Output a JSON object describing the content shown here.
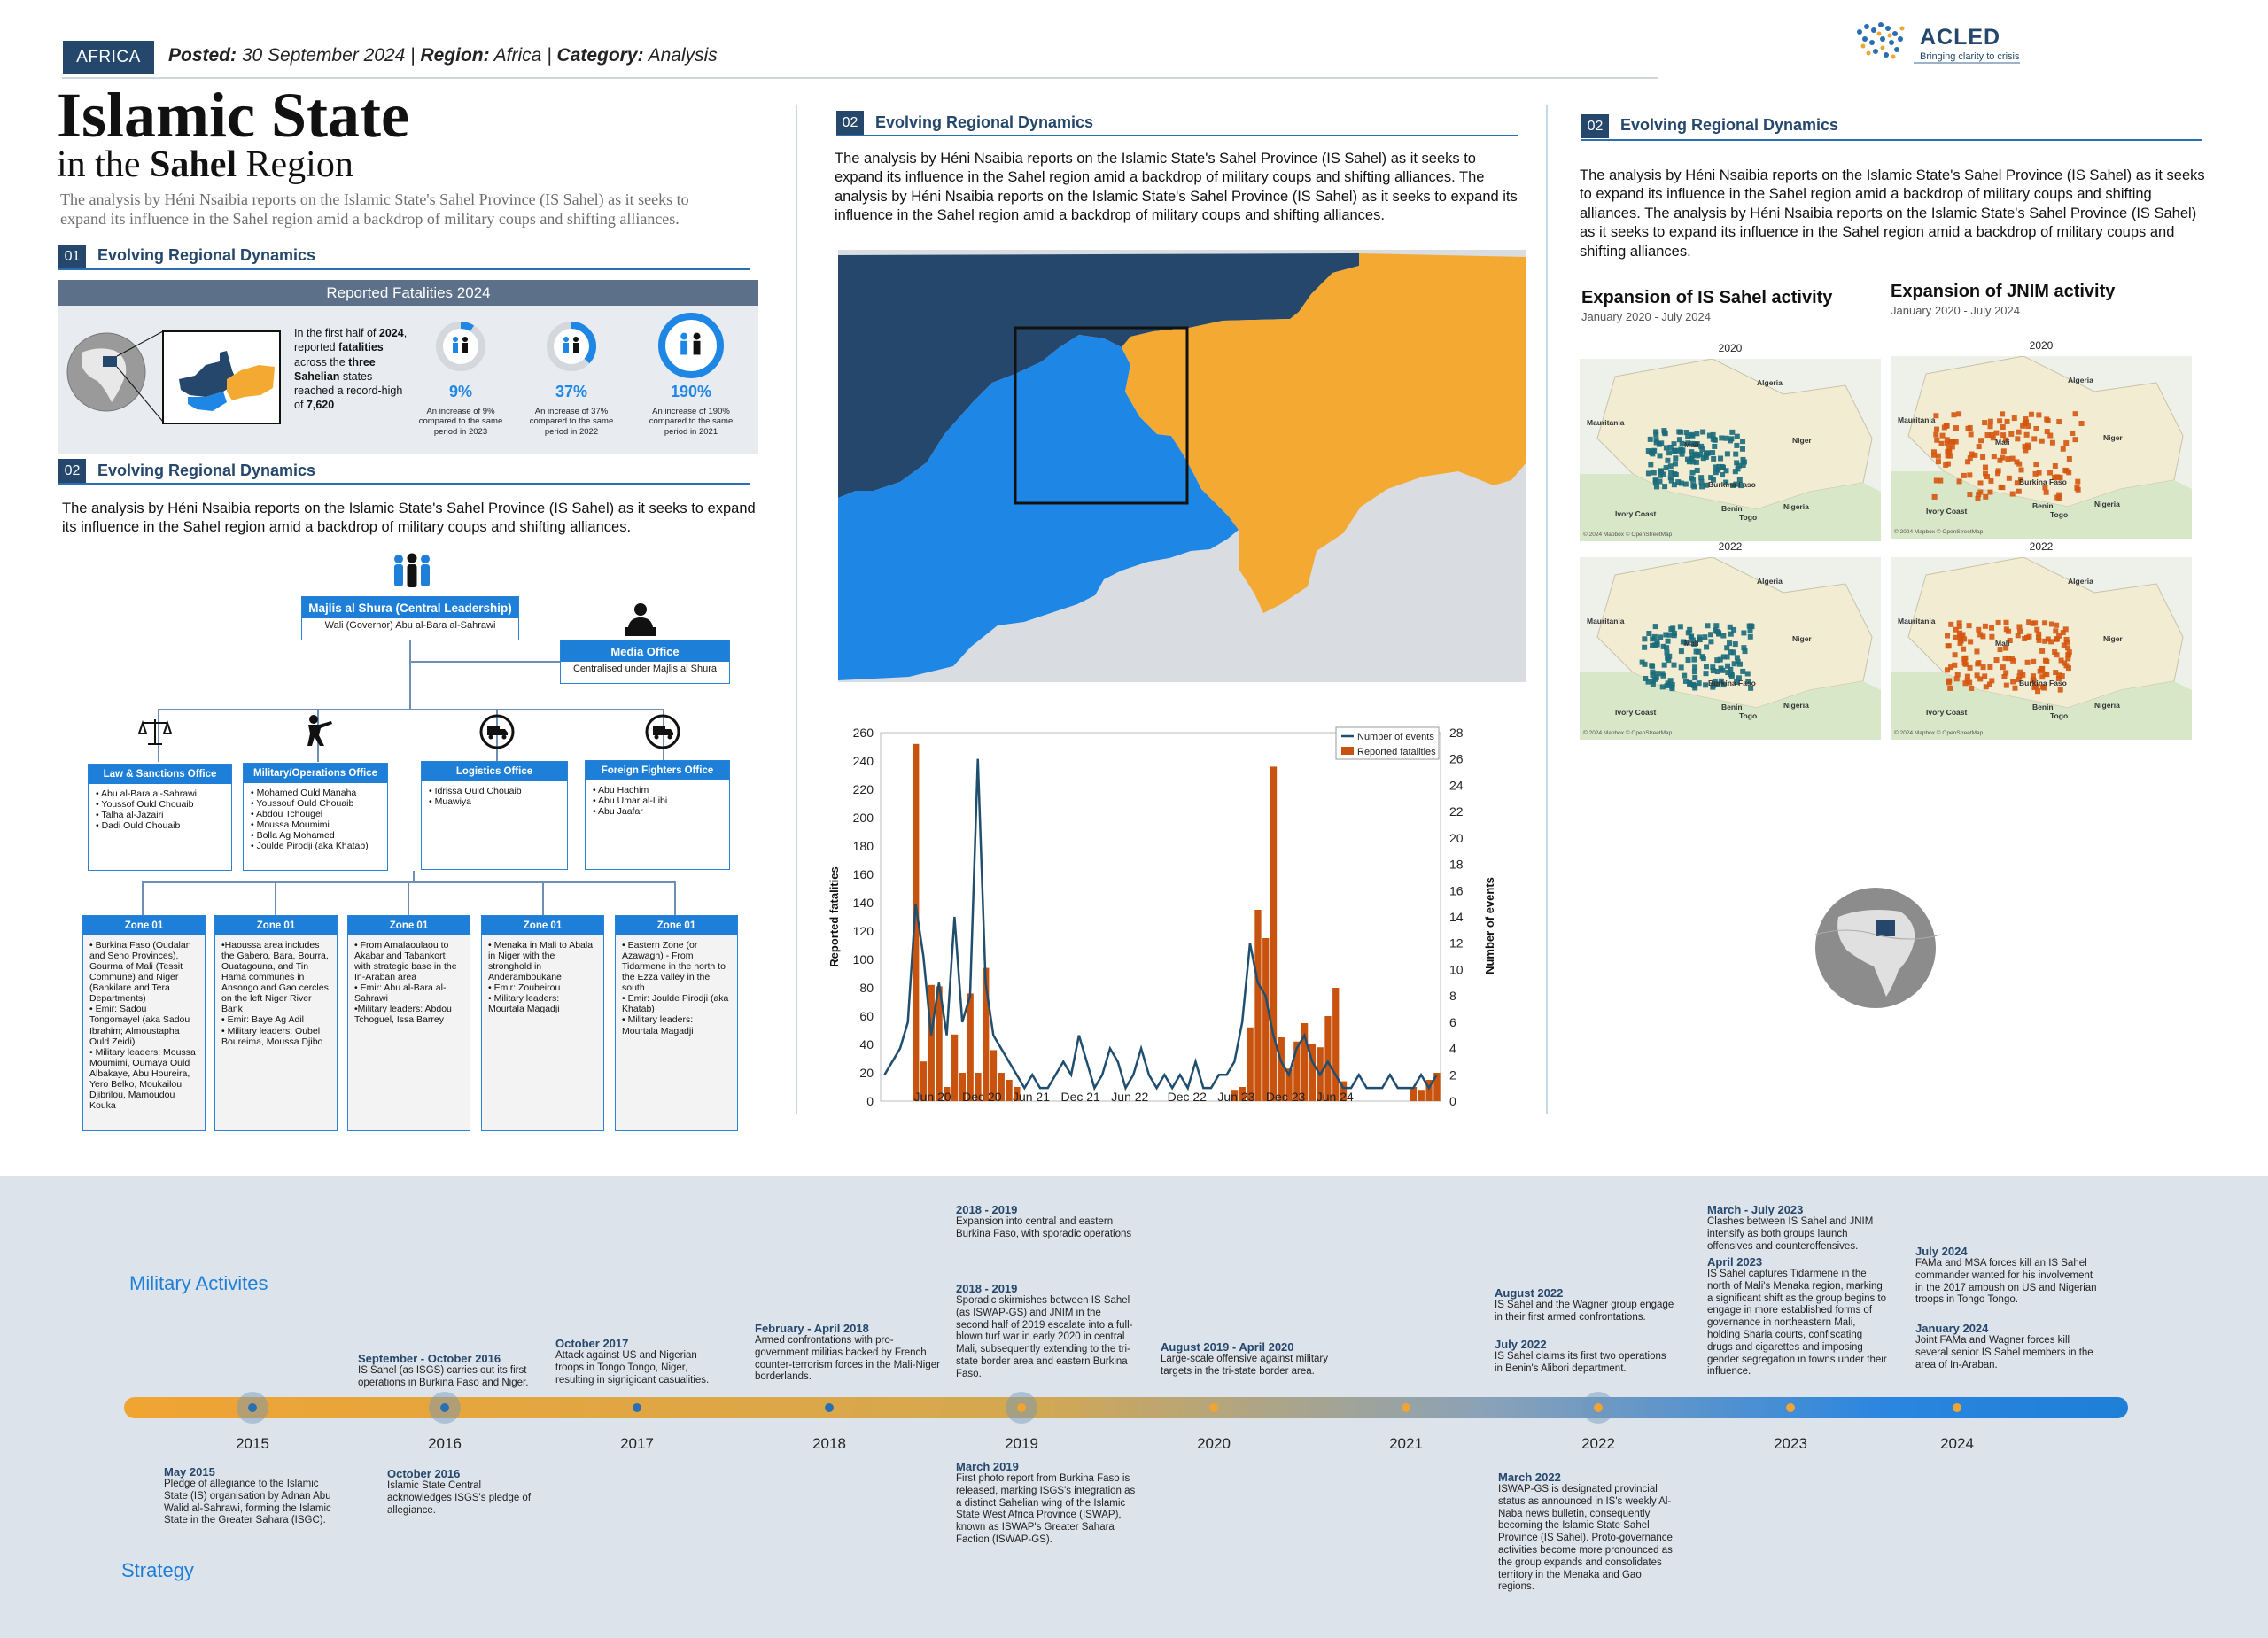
{
  "header": {
    "tag": "AFRICA",
    "posted_label": "Posted:",
    "posted_date": "30 September 2024",
    "region_label": "Region:",
    "region": "Africa",
    "category_label": "Category:",
    "category": "Analysis",
    "logo_name": "ACLED",
    "logo_tagline": "Bringing clarity to crisis"
  },
  "title": {
    "line1": "Islamic State",
    "line2_pre": "in the",
    "line2_bold": "Sahel",
    "line2_post": "Region",
    "intro": "The analysis by Héni Nsaibia reports on the Islamic State's Sahel Province (IS Sahel) as it seeks to expand its influence in the Sahel region amid a backdrop of military coups and shifting alliances."
  },
  "section01": {
    "num": "01",
    "title": "Evolving Regional Dynamics",
    "box_title": "Reported Fatalities 2024",
    "text_pre": "In the first half of",
    "text_year": "2024",
    "text_mid1": ", reported",
    "text_bold1": "fatalities",
    "text_mid2": "across the",
    "text_bold2": "three Sahelian",
    "text_mid3": "states reached a record-high of",
    "text_bold3": "7,620",
    "stats": [
      {
        "pct": "9%",
        "value": 0.09,
        "desc": "An increase of 9% compared to the same period in 2023"
      },
      {
        "pct": "37%",
        "value": 0.37,
        "desc": "An increase of 37% compared to the same period in 2022"
      },
      {
        "pct": "190%",
        "value": 1.0,
        "desc": "An increase of 190% compared to the same period in 2021"
      }
    ]
  },
  "section02a": {
    "num": "02",
    "title": "Evolving Regional Dynamics",
    "text": "The analysis by Héni Nsaibia reports on the Islamic State's Sahel Province (IS Sahel) as it seeks to expand its influence in the Sahel region amid a backdrop of military coups and shifting alliances."
  },
  "org": {
    "leader_title": "Majlis al Shura (Central Leadership)",
    "leader_sub": "Wali (Governor) Abu al-Bara al-Sahrawi",
    "media_title": "Media Office",
    "media_sub": "Centralised under Majlis al Shura",
    "offices": [
      {
        "title": "Law & Sanctions Office",
        "items": [
          "Abu al-Bara al-Sahrawi",
          "Youssof Ould Chouaib",
          "Talha al-Jazairi",
          "Dadi Ould Chouaib"
        ]
      },
      {
        "title": "Military/Operations Office",
        "items": [
          "Mohamed Ould Manaha",
          "Youssouf Ould Chouaib",
          "Abdou Tchougel",
          "Moussa Moumimi",
          "Bolla Ag Mohamed",
          "Joulde Pirodji (aka Khatab)"
        ]
      },
      {
        "title": "Logistics Office",
        "items": [
          "Idrissa Ould Chouaib",
          "Muawiya"
        ]
      },
      {
        "title": "Foreign Fighters Office",
        "items": [
          "Abu Hachim",
          "Abu Umar al-Libi",
          "Abu Jaafar"
        ]
      }
    ],
    "zones": [
      {
        "title": "Zone 01",
        "items": [
          "• Burkina Faso (Oudalan and Seno Provinces), Gourma of Mali (Tessit Commune) and Niger (Bankilare and Tera Departments)",
          "• Emir: Sadou Tongomayel (aka Sadou Ibrahim; Almoustapha Ould Zeidi)",
          "• Military leaders: Moussa Moumimi, Oumaya Ould Albakaye, Abu Houreira, Yero Belko, Moukailou Djibrilou, Mamoudou Kouka"
        ]
      },
      {
        "title": "Zone 01",
        "items": [
          "•Haoussa area includes the Gabero, Bara, Bourra, Ouatagouna, and Tin Hama communes in Ansongo and Gao cercles on the left Niger River Bank",
          "• Emir: Baye Ag Adil",
          "• Military leaders: Oubel Boureima, Moussa Djibo"
        ]
      },
      {
        "title": "Zone 01",
        "items": [
          "• From Amalaoulaou to Akabar and Tabankort with strategic base in the In-Araban area",
          "• Emir: Abu al-Bara al-Sahrawi",
          "•Military leaders: Abdou Tchoguel, Issa Barrey"
        ]
      },
      {
        "title": "Zone 01",
        "items": [
          "• Menaka in Mali to Abala in Niger with the stronghold in Anderamboukane",
          "• Emir: Zoubeirou",
          "• Military leaders: Mourtala Magadji"
        ]
      },
      {
        "title": "Zone 01",
        "items": [
          "• Eastern Zone (or Azawagh) - From Tidarmene in the north to the Ezza valley in the south",
          "• Emir: Joulde Pirodji (aka Khatab)",
          "• Military leaders: Mourtala Magadji"
        ]
      }
    ]
  },
  "section02b": {
    "num": "02",
    "title": "Evolving Regional Dynamics",
    "text": "The analysis by Héni Nsaibia reports on the Islamic State's Sahel Province (IS Sahel) as it seeks to expand its influence in the Sahel region amid a backdrop of military coups and shifting alliances. The analysis by Héni Nsaibia reports on the Islamic State's Sahel Province (IS Sahel) as it seeks to expand its influence in the Sahel region amid a backdrop of military coups and shifting alliances."
  },
  "chart_data": {
    "type": "bar",
    "xlabel": "",
    "ylabel": "Reported fatalities",
    "y2label": "Number of events",
    "ylim": [
      0,
      260
    ],
    "y2lim": [
      0,
      28
    ],
    "yticks": [
      0,
      20,
      40,
      60,
      80,
      100,
      120,
      140,
      160,
      180,
      200,
      220,
      240,
      260
    ],
    "y2ticks": [
      0,
      2,
      4,
      6,
      8,
      10,
      12,
      14,
      16,
      18,
      20,
      22,
      24,
      26,
      28
    ],
    "xticklabels": [
      "Jun 20",
      "Dec 20",
      "Jun 21",
      "Dec 21",
      "Jun 22",
      "Dec 22",
      "Jun 23",
      "Dec 23",
      "Jun 24"
    ],
    "legend": "top-right",
    "series": [
      {
        "name": "Number of events",
        "kind": "line",
        "color": "#1f4e6e",
        "values": [
          2,
          3,
          4,
          6,
          15,
          11,
          5,
          9,
          5,
          14,
          6,
          8,
          26,
          9,
          5,
          4,
          3,
          2,
          1,
          2,
          1,
          1,
          2,
          3,
          2,
          5,
          3,
          1,
          2,
          4,
          3,
          1,
          2,
          4,
          2,
          1,
          2,
          1,
          2,
          1,
          3,
          1,
          1,
          2,
          2,
          3,
          6,
          12,
          9,
          8,
          5,
          3,
          2,
          4,
          5,
          3,
          2,
          3,
          2,
          1,
          1,
          2,
          1,
          1,
          1,
          2,
          1,
          1,
          1,
          2,
          1,
          2
        ]
      },
      {
        "name": "Reported fatalities",
        "kind": "bar",
        "color": "#c8530f",
        "values": [
          0,
          0,
          0,
          0,
          252,
          28,
          82,
          81,
          10,
          47,
          20,
          76,
          20,
          94,
          36,
          20,
          15,
          10,
          0,
          0,
          0,
          0,
          0,
          0,
          0,
          0,
          0,
          0,
          0,
          0,
          0,
          0,
          0,
          0,
          0,
          0,
          0,
          0,
          0,
          0,
          0,
          0,
          0,
          0,
          0,
          8,
          10,
          52,
          135,
          115,
          236,
          45,
          23,
          42,
          55,
          40,
          38,
          60,
          80,
          14,
          0,
          0,
          0,
          0,
          0,
          0,
          0,
          0,
          10,
          8,
          15,
          20
        ]
      }
    ]
  },
  "section02c": {
    "num": "02",
    "title": "Evolving Regional Dynamics",
    "text": "The analysis by Héni Nsaibia reports on the Islamic State's Sahel Province (IS Sahel) as it seeks to expand its influence in the Sahel region amid a backdrop of military coups and shifting alliances. The analysis by Héni Nsaibia reports on the Islamic State's Sahel Province (IS Sahel) as it seeks to expand its influence in the Sahel region amid a backdrop of military coups and shifting alliances."
  },
  "maps": {
    "is_title": "Expansion of IS Sahel activity",
    "is_sub": "January 2020 - July 2024",
    "jnim_title": "Expansion of JNIM activity",
    "jnim_sub": "January 2020 - July 2024",
    "labels": {
      "y2020": "2020",
      "y2022": "2022",
      "algeria": "Algeria",
      "mauritania": "Mauritania",
      "mali": "Mali",
      "niger": "Niger",
      "nigeria": "Nigeria",
      "burkina": "Burkina Faso",
      "benin": "Benin",
      "ivory": "Ivory Coast",
      "togo": "Togo",
      "credit": "© 2024 Mapbox © OpenStreetMap"
    },
    "is_color": "#1a6b7a",
    "jnim_color": "#d4560f"
  },
  "timeline": {
    "military_heading": "Military Activites",
    "strategy_heading": "Strategy",
    "years": [
      "2015",
      "2016",
      "2017",
      "2018",
      "2019",
      "2020",
      "2021",
      "2022",
      "2023",
      "2024"
    ],
    "above": [
      {
        "date": "September - October 2016",
        "text": "IS Sahel (as ISGS) carries out its first operations in Burkina Faso and Niger."
      },
      {
        "date": "October 2017",
        "text": "Attack against US and Nigerian troops in Tongo Tongo, Niger, resulting in signigicant casualities."
      },
      {
        "date": "February - April 2018",
        "text": "Armed confrontations with pro-government militias backed by French counter-terrorism forces in the Mali-Niger borderlands."
      },
      {
        "date": "2018 - 2019",
        "text": "Expansion into central and eastern Burkina Faso, with sporadic operations"
      },
      {
        "date": "2018 - 2019",
        "text": "Sporadic skirmishes between IS Sahel (as ISWAP-GS) and JNIM in the second half of 2019 escalate into a full-blown turf war in early 2020 in central Mali, subsequently extending to the tri-state border area and eastern Burkina Faso."
      },
      {
        "date": "August 2019 - April 2020",
        "text": "Large-scale offensive against military targets in the tri-state border area."
      },
      {
        "date": "August 2022",
        "text": "IS Sahel and the Wagner group engage in their first armed confrontations."
      },
      {
        "date": "July 2022",
        "text": "IS Sahel claims its first two operations in Benin's Alibori department."
      },
      {
        "date": "March - July 2023",
        "text": "Clashes between IS Sahel and JNIM intensify as both groups launch offensives and counteroffensives."
      },
      {
        "date": "April 2023",
        "text": "IS Sahel captures Tidarmene in the north of Mali's Menaka region, marking a significant shift as the group begins to engage in more established forms of governance in northeastern Mali, holding Sharia courts, confiscating drugs and cigarettes and imposing gender segregation in towns under their influence."
      },
      {
        "date": "July 2024",
        "text": "FAMa and MSA forces kill an IS Sahel commander wanted for his involvement in the 2017 ambush on US and Nigerian troops in Tongo Tongo."
      },
      {
        "date": "January 2024",
        "text": "Joint FAMa and Wagner forces kill several senior IS Sahel members in the area of In-Araban."
      }
    ],
    "below": [
      {
        "date": "May 2015",
        "text": "Pledge of allegiance to the Islamic State (IS) organisation by Adnan Abu Walid al-Sahrawi, forming the Islamic State in the Greater Sahara (ISGC)."
      },
      {
        "date": "October 2016",
        "text": "Islamic State Central acknowledges ISGS's pledge of allegiance."
      },
      {
        "date": "March 2019",
        "text": "First photo report from Burkina Faso is released, marking ISGS's integration as a distinct Sahelian wing of the Islamic State West Africa Province (ISWAP), known as ISWAP's Greater Sahara Faction (ISWAP-GS)."
      },
      {
        "date": "March 2022",
        "text": "ISWAP-GS is designated provincial status as announced in IS's weekly Al-Naba news bulletin, consequently becoming the Islamic State Sahel Province (IS Sahel). Proto-governance activities become more pronounced as the group expands and consolidates territory in the Menaka and Gao regions."
      }
    ]
  }
}
